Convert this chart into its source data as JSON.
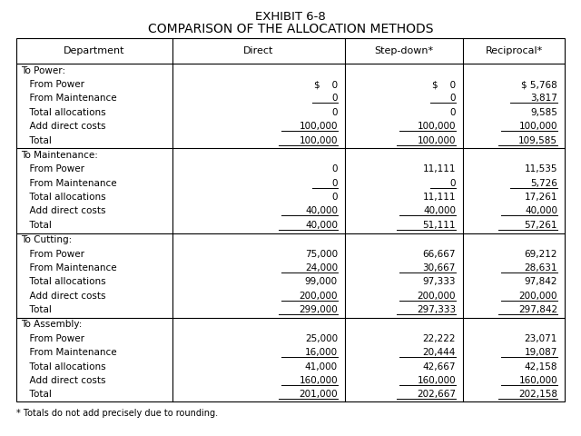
{
  "title1": "EXHIBIT 6-8",
  "title2": "COMPARISON OF THE ALLOCATION METHODS",
  "headers": [
    "Department",
    "Direct",
    "Step-down*",
    "Reciprocal*"
  ],
  "sections": [
    {
      "header": "To Power:",
      "rows": [
        [
          "  From Power",
          "$    0",
          "$    0",
          "$ 5,768"
        ],
        [
          "  From Maintenance",
          "0",
          "0",
          "3,817"
        ],
        [
          "  Total allocations",
          "0",
          "0",
          "9,585"
        ],
        [
          "  Add direct costs",
          "100,000",
          "100,000",
          "100,000"
        ],
        [
          "  Total",
          "100,000",
          "100,000",
          "109,585"
        ]
      ],
      "underline_rows": [
        1,
        3
      ],
      "total_row": 4
    },
    {
      "header": "To Maintenance:",
      "rows": [
        [
          "  From Power",
          "0",
          "11,111",
          "11,535"
        ],
        [
          "  From Maintenance",
          "0",
          "0",
          "5,726"
        ],
        [
          "  Total allocations",
          "0",
          "11,111",
          "17,261"
        ],
        [
          "  Add direct costs",
          "40,000",
          "40,000",
          "40,000"
        ],
        [
          "  Total",
          "40,000",
          "51,111",
          "57,261"
        ]
      ],
      "underline_rows": [
        1,
        3
      ],
      "total_row": 4
    },
    {
      "header": "To Cutting:",
      "rows": [
        [
          "  From Power",
          "75,000",
          "66,667",
          "69,212"
        ],
        [
          "  From Maintenance",
          "24,000",
          "30,667",
          "28,631"
        ],
        [
          "  Total allocations",
          "99,000",
          "97,333",
          "97,842"
        ],
        [
          "  Add direct costs",
          "200,000",
          "200,000",
          "200,000"
        ],
        [
          "  Total",
          "299,000",
          "297,333",
          "297,842"
        ]
      ],
      "underline_rows": [
        1,
        3
      ],
      "total_row": 4
    },
    {
      "header": "To Assembly:",
      "rows": [
        [
          "  From Power",
          "25,000",
          "22,222",
          "23,071"
        ],
        [
          "  From Maintenance",
          "16,000",
          "20,444",
          "19,087"
        ],
        [
          "  Total allocations",
          "41,000",
          "42,667",
          "42,158"
        ],
        [
          "  Add direct costs",
          "160,000",
          "160,000",
          "160,000"
        ],
        [
          "  Total",
          "201,000",
          "202,667",
          "202,158"
        ]
      ],
      "underline_rows": [
        1,
        3
      ],
      "total_row": 4
    }
  ],
  "footnote": "* Totals do not add precisely due to rounding.",
  "background_color": "#ffffff",
  "font_size": 7.5,
  "header_font_size": 8.0,
  "title_font_size": 9.5
}
